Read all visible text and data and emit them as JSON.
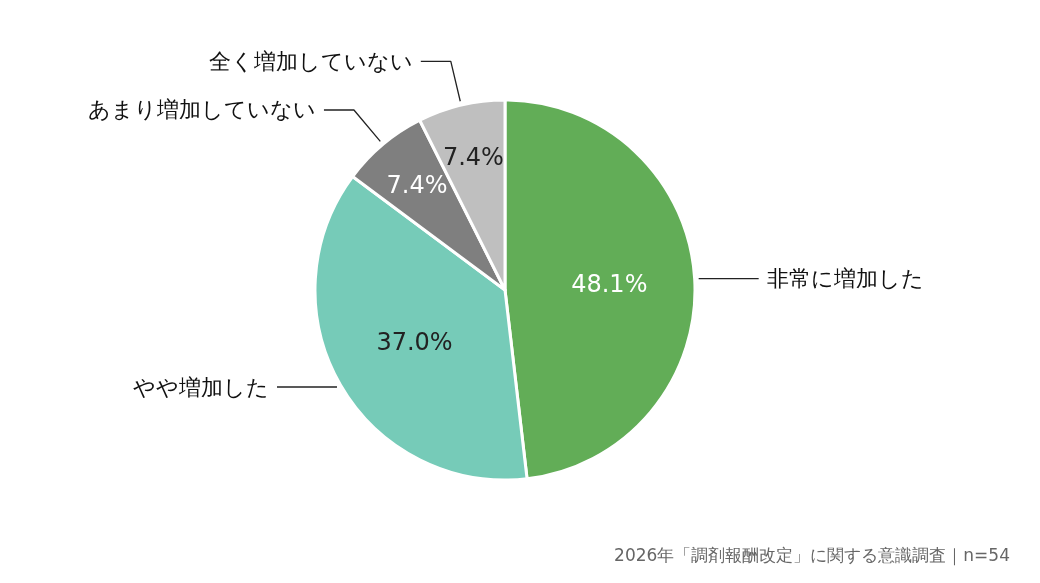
{
  "chart_data": {
    "type": "pie",
    "categories": [
      "非常に増加した",
      "やや増加した",
      "あまり増加していない",
      "全く増加していない"
    ],
    "values": [
      48.1,
      37.0,
      7.4,
      7.4
    ],
    "value_labels": [
      "48.1%",
      "37.0%",
      "7.4%",
      "7.4%"
    ],
    "colors": [
      "#62ad57",
      "#76cbb8",
      "#7f7f7f",
      "#bfbfbf"
    ],
    "annotations": [
      "2026年「調剤報酬改定」に関する意識調査｜n=54"
    ]
  }
}
